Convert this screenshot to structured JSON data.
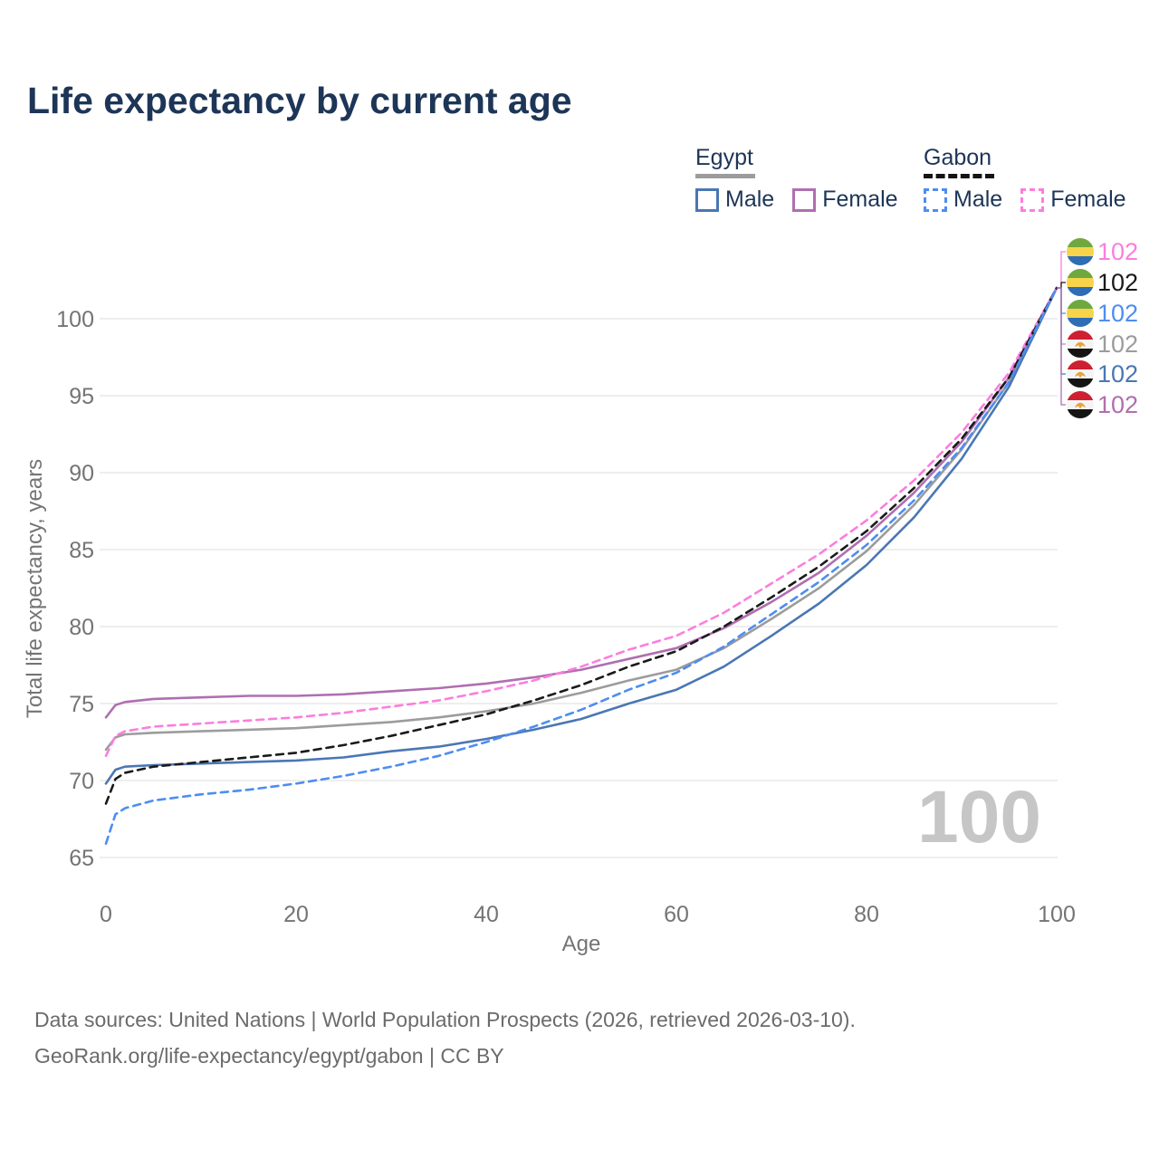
{
  "title": "Life expectancy by current age",
  "legend": {
    "groups": [
      {
        "label": "Egypt",
        "underline_style": "solid",
        "underline_color": "#9c9c9c",
        "items": [
          {
            "label": "Male",
            "color": "#4a77b4",
            "dashed": false
          },
          {
            "label": "Female",
            "color": "#af6fb0",
            "dashed": false
          }
        ]
      },
      {
        "label": "Gabon",
        "underline_style": "dashed",
        "underline_color": "#141414",
        "items": [
          {
            "label": "Male",
            "color": "#4d8df2",
            "dashed": true
          },
          {
            "label": "Female",
            "color": "#fb7ede",
            "dashed": true
          }
        ]
      }
    ]
  },
  "chart_data": {
    "type": "line",
    "title": "Life expectancy by current age",
    "xlabel": "Age",
    "ylabel": "Total life expectancy, years",
    "xlim": [
      0,
      100
    ],
    "ylim": [
      65,
      103
    ],
    "x_ticks": [
      0,
      20,
      40,
      60,
      80,
      100
    ],
    "y_ticks": [
      65,
      70,
      75,
      80,
      85,
      90,
      95,
      100
    ],
    "grid": "horizontal",
    "legend_position": "top-right",
    "watermark": "100",
    "x": [
      0,
      1,
      2,
      5,
      10,
      15,
      20,
      25,
      30,
      35,
      40,
      45,
      50,
      55,
      60,
      65,
      70,
      75,
      80,
      85,
      90,
      95,
      100
    ],
    "series": [
      {
        "key": "egypt-total",
        "name": "Egypt",
        "country": "Egypt",
        "sex": "Both",
        "color": "#9c9c9c",
        "dashed": false,
        "values": [
          72.0,
          72.8,
          73.0,
          73.1,
          73.2,
          73.3,
          73.4,
          73.6,
          73.8,
          74.1,
          74.5,
          75.0,
          75.7,
          76.5,
          77.2,
          78.6,
          80.5,
          82.5,
          84.9,
          87.9,
          91.5,
          95.9,
          102
        ]
      },
      {
        "key": "egypt-female",
        "name": "Egypt Female",
        "country": "Egypt",
        "sex": "Female",
        "color": "#af6fb0",
        "dashed": false,
        "values": [
          74.1,
          74.9,
          75.1,
          75.3,
          75.4,
          75.5,
          75.5,
          75.6,
          75.8,
          76.0,
          76.3,
          76.7,
          77.2,
          77.9,
          78.6,
          79.9,
          81.6,
          83.5,
          85.9,
          88.7,
          92.0,
          96.2,
          102
        ]
      },
      {
        "key": "egypt-male",
        "name": "Egypt Male",
        "country": "Egypt",
        "sex": "Male",
        "color": "#4a77b4",
        "dashed": false,
        "values": [
          69.8,
          70.7,
          70.9,
          71.0,
          71.1,
          71.2,
          71.3,
          71.5,
          71.9,
          72.2,
          72.7,
          73.3,
          74.0,
          75.0,
          75.9,
          77.4,
          79.4,
          81.5,
          84.0,
          87.1,
          90.9,
          95.6,
          102
        ]
      },
      {
        "key": "gabon-female",
        "name": "Gabon Female",
        "country": "Gabon",
        "sex": "Female",
        "color": "#fb7ede",
        "dashed": true,
        "values": [
          71.6,
          72.9,
          73.2,
          73.5,
          73.7,
          73.9,
          74.1,
          74.4,
          74.8,
          75.2,
          75.8,
          76.5,
          77.4,
          78.5,
          79.4,
          80.9,
          82.8,
          84.7,
          86.9,
          89.5,
          92.6,
          96.5,
          102
        ]
      },
      {
        "key": "gabon-total",
        "name": "Gabon",
        "country": "Gabon",
        "sex": "Both",
        "color": "#1a1a1a",
        "dashed": true,
        "values": [
          68.5,
          70.1,
          70.5,
          70.9,
          71.2,
          71.5,
          71.8,
          72.3,
          72.9,
          73.6,
          74.3,
          75.2,
          76.2,
          77.4,
          78.4,
          80.0,
          81.9,
          83.9,
          86.2,
          89.0,
          92.2,
          96.2,
          102
        ]
      },
      {
        "key": "gabon-male",
        "name": "Gabon Male",
        "country": "Gabon",
        "sex": "Male",
        "color": "#4d8df2",
        "dashed": true,
        "values": [
          65.9,
          67.8,
          68.2,
          68.7,
          69.1,
          69.4,
          69.8,
          70.3,
          70.9,
          71.6,
          72.5,
          73.5,
          74.6,
          75.9,
          77.0,
          78.7,
          80.8,
          82.9,
          85.3,
          88.2,
          91.6,
          95.9,
          102
        ]
      }
    ],
    "end_labels": [
      {
        "flag": "gabon",
        "series": "gabon-female",
        "label": "102",
        "color": "#fb7ede"
      },
      {
        "flag": "gabon",
        "series": "gabon-total",
        "label": "102",
        "color": "#1a1a1a"
      },
      {
        "flag": "gabon",
        "series": "gabon-male",
        "label": "102",
        "color": "#4d8df2"
      },
      {
        "flag": "egypt",
        "series": "egypt-total",
        "label": "102",
        "color": "#9c9c9c"
      },
      {
        "flag": "egypt",
        "series": "egypt-male",
        "label": "102",
        "color": "#4a77b4"
      },
      {
        "flag": "egypt",
        "series": "egypt-female",
        "label": "102",
        "color": "#af6fb0"
      }
    ]
  },
  "footer": {
    "line1": "Data sources: United Nations | World Population Prospects (2026, retrieved 2026-03-10).",
    "line2": "GeoRank.org/life-expectancy/egypt/gabon | CC BY"
  }
}
